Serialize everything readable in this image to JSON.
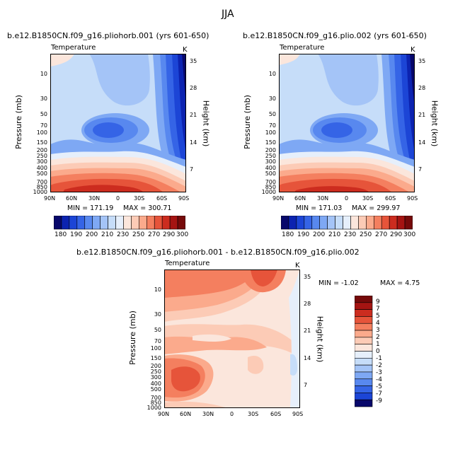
{
  "season": "JJA",
  "variable": "Temperature",
  "units": "K",
  "pressure_label": "Pressure (mb)",
  "height_label": "Height (km)",
  "panels": [
    {
      "id": "case1",
      "title": "b.e12.B1850CN.f09_g16.pliohorb.001 (yrs 601-650)",
      "min_label": "MIN = 171.19",
      "max_label": "MAX = 300.71"
    },
    {
      "id": "case2",
      "title": "b.e12.B1850CN.f09_g16.plio.002 (yrs 601-650)",
      "min_label": "MIN = 171.03",
      "max_label": "MAX = 299.97"
    },
    {
      "id": "diff",
      "title": "b.e12.B1850CN.f09_g16.pliohorb.001 - b.e12.B1850CN.f09_g16.plio.002",
      "min_label": "MIN = -1.02",
      "max_label": "MAX = 4.75"
    }
  ],
  "chart_data": [
    {
      "type": "heatmap",
      "name": "case1",
      "x_ticks": [
        "90N",
        "60N",
        "30N",
        "0",
        "30S",
        "60S",
        "90S"
      ],
      "pressure_ticks": [
        "10",
        "30",
        "50",
        "70",
        "100",
        "150",
        "200",
        "250",
        "300",
        "400",
        "500",
        "700",
        "850",
        "1000"
      ],
      "height_ticks_km": [
        "35",
        "28",
        "21",
        "14",
        "7"
      ],
      "ylim_mb": [
        1000,
        5
      ],
      "value_range": [
        171.19,
        300.71
      ]
    },
    {
      "type": "heatmap",
      "name": "case2",
      "x_ticks": [
        "90N",
        "60N",
        "30N",
        "0",
        "30S",
        "60S",
        "90S"
      ],
      "pressure_ticks": [
        "10",
        "30",
        "50",
        "70",
        "100",
        "150",
        "200",
        "250",
        "300",
        "400",
        "500",
        "700",
        "850",
        "1000"
      ],
      "height_ticks_km": [
        "35",
        "28",
        "21",
        "14",
        "7"
      ],
      "ylim_mb": [
        1000,
        5
      ],
      "value_range": [
        171.03,
        299.97
      ]
    },
    {
      "type": "heatmap",
      "name": "difference",
      "x_ticks": [
        "90N",
        "60N",
        "30N",
        "0",
        "30S",
        "60S",
        "90S"
      ],
      "pressure_ticks": [
        "10",
        "30",
        "50",
        "70",
        "100",
        "150",
        "200",
        "250",
        "300",
        "400",
        "500",
        "700",
        "850",
        "1000"
      ],
      "height_ticks_km": [
        "35",
        "28",
        "21",
        "14",
        "7"
      ],
      "ylim_mb": [
        1000,
        5
      ],
      "value_range": [
        -1.02,
        4.75
      ]
    }
  ],
  "colorbar_abs": {
    "labels": [
      "180",
      "190",
      "200",
      "210",
      "230",
      "250",
      "270",
      "290",
      "300"
    ],
    "colors": [
      "#08086b",
      "#0c23b0",
      "#1c45d6",
      "#3564e6",
      "#5888ef",
      "#7ea8f4",
      "#a4c4f7",
      "#c6ddf9",
      "#e6effb",
      "#fbe6dc",
      "#fccbb6",
      "#fbaa8c",
      "#f47f5f",
      "#e6543a",
      "#cc2c1f",
      "#a51412",
      "#760a0a"
    ]
  },
  "colorbar_diff": {
    "labels": [
      "9",
      "7",
      "5",
      "4",
      "3",
      "2",
      "1",
      "0",
      "-1",
      "-2",
      "-3",
      "-4",
      "-5",
      "-7",
      "-9"
    ],
    "colors": [
      "#760a0a",
      "#a51412",
      "#cc2c1f",
      "#e6543a",
      "#f47f5f",
      "#fbaa8c",
      "#fccbb6",
      "#fbe6dc",
      "#e6effb",
      "#c6ddf9",
      "#a4c4f7",
      "#7ea8f4",
      "#5888ef",
      "#3564e6",
      "#1c45d6",
      "#08086b"
    ]
  }
}
